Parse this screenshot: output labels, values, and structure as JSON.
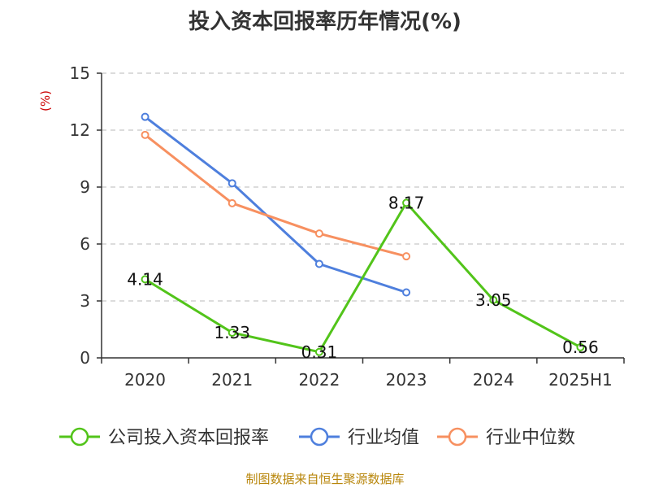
{
  "chart_data": {
    "type": "line",
    "title": "投入资本回报率历年情况(%)",
    "ylabel": "(%)",
    "categories": [
      "2020",
      "2021",
      "2022",
      "2023",
      "2024",
      "2025H1"
    ],
    "ylim": [
      0,
      15
    ],
    "yticks": [
      0,
      3,
      6,
      9,
      12,
      15
    ],
    "grid": "horizontal-dashed",
    "legend": "bottom",
    "series": [
      {
        "name": "公司投入资本回报率",
        "color": "#52c41a",
        "values": [
          4.14,
          1.33,
          0.31,
          8.17,
          3.05,
          0.56
        ],
        "labels": [
          "4.14",
          "1.33",
          "0.31",
          "8.17",
          "3.05",
          "0.56"
        ]
      },
      {
        "name": "行业均值",
        "color": "#4e7fdd",
        "values": [
          12.7,
          9.2,
          4.95,
          3.45,
          null,
          null
        ]
      },
      {
        "name": "行业中位数",
        "color": "#f79060",
        "values": [
          11.75,
          8.15,
          6.55,
          5.35,
          null,
          null
        ]
      }
    ]
  },
  "footer": "制图数据来自恒生聚源数据库"
}
